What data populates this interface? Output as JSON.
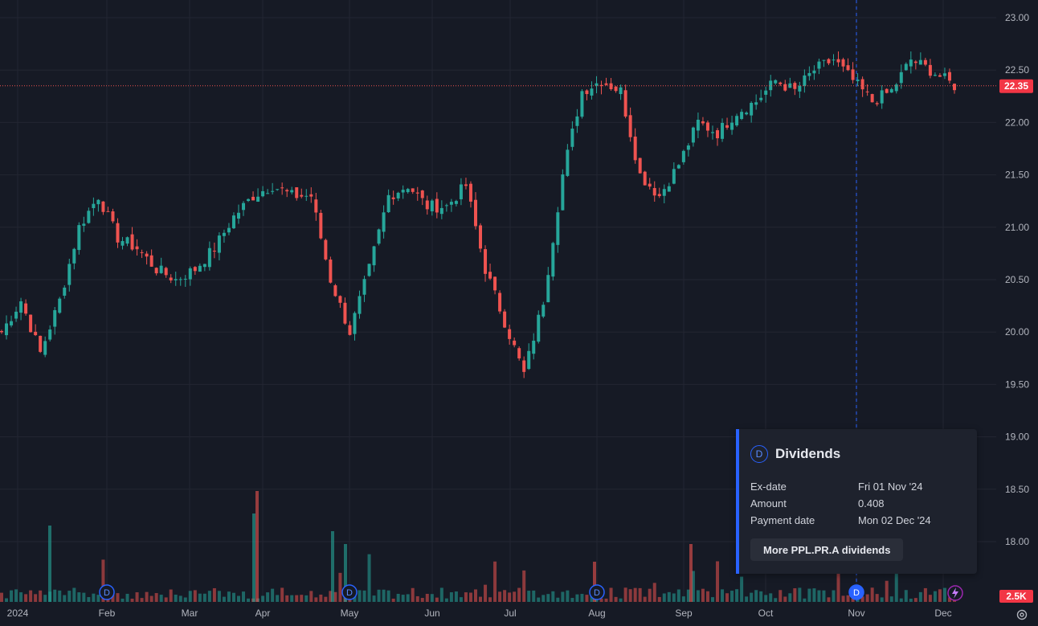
{
  "chart_data": {
    "type": "candlestick",
    "symbol": "PPL.PR.A",
    "y_axis": {
      "ticks": [
        "23.00",
        "22.50",
        "22.00",
        "21.50",
        "21.00",
        "20.50",
        "20.00",
        "19.50",
        "19.00",
        "18.50",
        "18.00"
      ],
      "min": 17.5,
      "max": 23.15
    },
    "x_axis": {
      "labels": [
        "2024",
        "Feb",
        "Mar",
        "Apr",
        "May",
        "Jun",
        "Jul",
        "Aug",
        "Sep",
        "Oct",
        "Nov",
        "Dec"
      ]
    },
    "last_price": "22.35",
    "last_price_value": 22.35,
    "volume_label": "2.5K",
    "crosshair_x_label": "Nov",
    "dividend_markers": [
      "Feb",
      "May",
      "Aug",
      "Nov"
    ],
    "colors": {
      "up": "#26a69a",
      "down": "#ef5350",
      "background": "#161a25",
      "grid": "#232632",
      "accent": "#2962ff"
    },
    "anchors": [
      [
        0,
        20.0
      ],
      [
        4,
        20.3
      ],
      [
        8,
        19.8
      ],
      [
        12,
        20.3
      ],
      [
        16,
        21.0
      ],
      [
        20,
        21.3
      ],
      [
        24,
        20.9
      ],
      [
        28,
        20.8
      ],
      [
        32,
        20.6
      ],
      [
        36,
        20.5
      ],
      [
        40,
        20.6
      ],
      [
        44,
        20.8
      ],
      [
        48,
        21.1
      ],
      [
        52,
        21.3
      ],
      [
        56,
        21.4
      ],
      [
        60,
        21.3
      ],
      [
        64,
        21.3
      ],
      [
        68,
        20.5
      ],
      [
        72,
        20.0
      ],
      [
        76,
        20.6
      ],
      [
        80,
        21.3
      ],
      [
        84,
        21.4
      ],
      [
        88,
        21.2
      ],
      [
        92,
        21.2
      ],
      [
        96,
        21.4
      ],
      [
        100,
        20.6
      ],
      [
        104,
        20.1
      ],
      [
        108,
        19.6
      ],
      [
        112,
        20.3
      ],
      [
        116,
        21.5
      ],
      [
        120,
        22.3
      ],
      [
        124,
        22.4
      ],
      [
        128,
        22.3
      ],
      [
        132,
        21.5
      ],
      [
        136,
        21.3
      ],
      [
        140,
        21.6
      ],
      [
        144,
        22.0
      ],
      [
        148,
        21.9
      ],
      [
        152,
        22.1
      ],
      [
        156,
        22.2
      ],
      [
        160,
        22.4
      ],
      [
        164,
        22.3
      ],
      [
        168,
        22.5
      ],
      [
        172,
        22.6
      ],
      [
        176,
        22.4
      ],
      [
        180,
        22.2
      ],
      [
        184,
        22.3
      ],
      [
        188,
        22.6
      ],
      [
        192,
        22.5
      ],
      [
        197,
        22.35
      ]
    ]
  },
  "tooltip": {
    "icon_letter": "D",
    "title": "Dividends",
    "rows": [
      {
        "label": "Ex-date",
        "value": "Fri 01 Nov '24"
      },
      {
        "label": "Amount",
        "value": "0.408"
      },
      {
        "label": "Payment date",
        "value": "Mon 02 Dec '24"
      }
    ],
    "button": "More PPL.PR.A dividends"
  }
}
